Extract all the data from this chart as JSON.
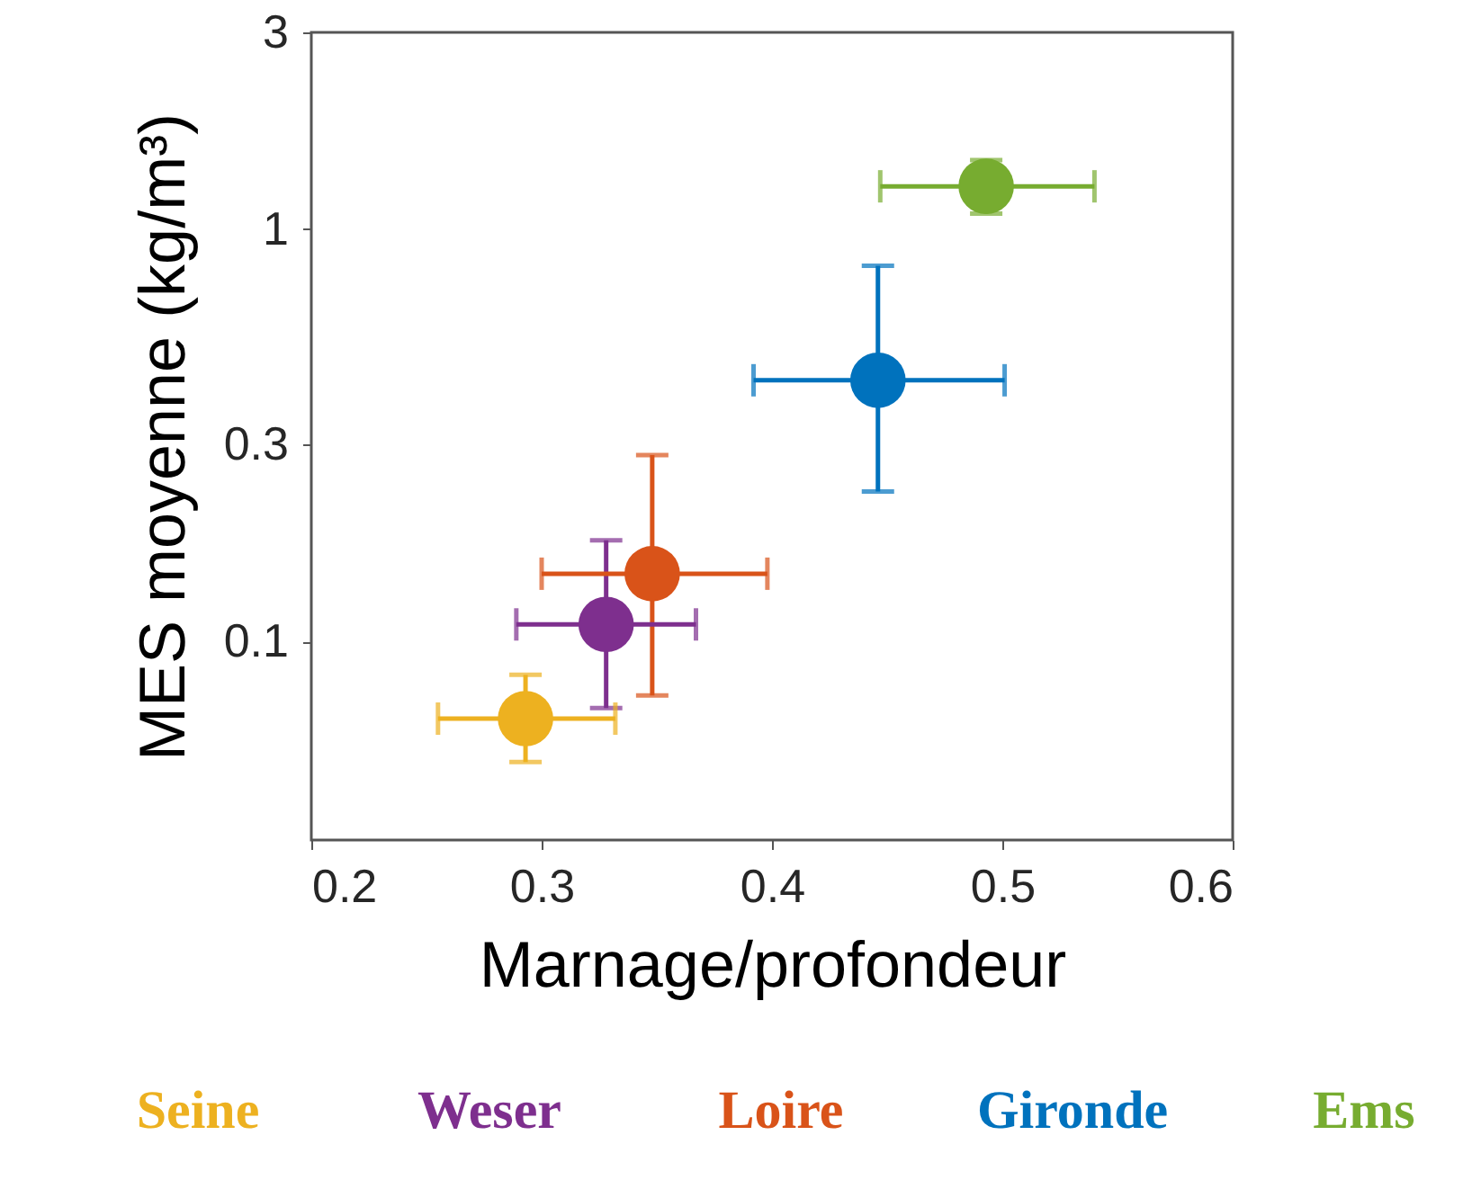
{
  "chart_data": {
    "type": "scatter",
    "xlabel": "Marnage/profondeur",
    "ylabel": "MES moyenne (kg/m³)",
    "log": "y",
    "xlim": [
      0.2,
      0.6
    ],
    "xticks": [
      0.2,
      0.3,
      0.4,
      0.5,
      0.6
    ],
    "ylim": [
      0.033,
      3
    ],
    "yticks": [
      0.1,
      0.3,
      1,
      3
    ],
    "grid": false,
    "legend": "bottom",
    "marker": "circle",
    "series": [
      {
        "name": "Seine",
        "color": "#edb120",
        "x": [
          0.293
        ],
        "values": [
          0.065
        ],
        "errors": [
          [
            0.051,
            0.083
          ]
        ],
        "xerrors": [
          [
            0.255,
            0.332
          ]
        ]
      },
      {
        "name": "Weser",
        "color": "#7e2f8e",
        "x": [
          0.328
        ],
        "values": [
          0.11
        ],
        "errors": [
          [
            0.069,
            0.176
          ]
        ],
        "xerrors": [
          [
            0.289,
            0.367
          ]
        ]
      },
      {
        "name": "Loire",
        "color": "#d95319",
        "x": [
          0.348
        ],
        "values": [
          0.146
        ],
        "errors": [
          [
            0.074,
            0.283
          ]
        ],
        "xerrors": [
          [
            0.3,
            0.398
          ]
        ]
      },
      {
        "name": "Gironde",
        "color": "#0072bd",
        "x": [
          0.446
        ],
        "values": [
          0.43
        ],
        "errors": [
          [
            0.231,
            0.815
          ]
        ],
        "xerrors": [
          [
            0.392,
            0.501
          ]
        ]
      },
      {
        "name": "Ems",
        "color": "#77ac30",
        "x": [
          0.493
        ],
        "values": [
          1.27
        ],
        "errors": [
          [
            1.09,
            1.47
          ]
        ],
        "xerrors": [
          [
            0.447,
            0.54
          ]
        ]
      }
    ]
  }
}
